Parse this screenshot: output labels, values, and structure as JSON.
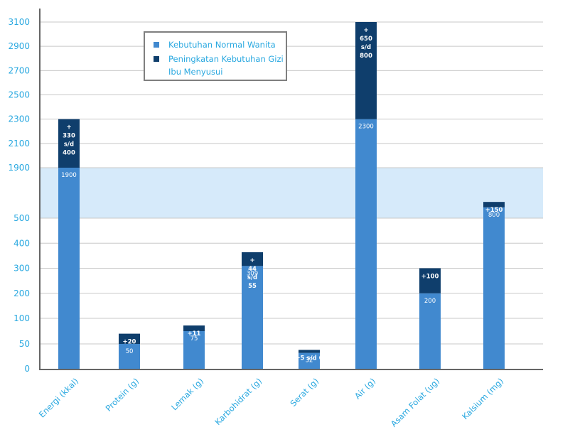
{
  "chart_data": {
    "type": "bar",
    "stacked": true,
    "categories": [
      "Energi (kkal)",
      "Protein (g)",
      "Lemak (g)",
      "Karbohidrat (g)",
      "Serat (g)",
      "Air (g)",
      "Asam Folat (ug)",
      "Kalsium (mg)"
    ],
    "series": [
      {
        "name": "Kebutuhan Normal Wanita",
        "color": "#4189cf",
        "values": [
          1900,
          50,
          75,
          309,
          32,
          2300,
          200,
          800
        ],
        "labels": [
          "1900",
          "50",
          "75",
          "309",
          "32",
          "2300",
          "200",
          "800"
        ]
      },
      {
        "name": "Peningkatan Kebutuhan Gizi Ibu Menyusui",
        "color": "#0f3e6c",
        "values": [
          400,
          20,
          11,
          55,
          6,
          800,
          100,
          150
        ],
        "labels": [
          [
            "+",
            "330",
            "s/d",
            "400"
          ],
          [
            "+20"
          ],
          [
            "+11"
          ],
          [
            "+",
            "44",
            "s/d",
            "55"
          ],
          [
            "+5 s/d 6"
          ],
          [
            "+",
            "650",
            "s/d",
            "800"
          ],
          [
            "+100"
          ],
          [
            "+150"
          ]
        ]
      }
    ],
    "y_ticks": [
      "0",
      "50",
      "100",
      "200",
      "300",
      "400",
      "500",
      "1900",
      "2100",
      "2300",
      "2500",
      "2700",
      "2900",
      "3100"
    ],
    "axis_break": [
      500,
      1900
    ],
    "ylim": [
      0,
      3100
    ],
    "grid": true,
    "legend": {
      "position": "top-left",
      "items": [
        {
          "lines": [
            "Kebutuhan Normal Wanita"
          ],
          "color": "#4189cf"
        },
        {
          "lines": [
            "Peningkatan Kebutuhan Gizi",
            "Ibu Menyusui"
          ],
          "color": "#0f3e6c"
        }
      ]
    },
    "colors": {
      "axis_text": "#29a8e0",
      "break_band": "#d6eafa",
      "grid": "#c8c8c8",
      "axis": "#666666"
    }
  }
}
